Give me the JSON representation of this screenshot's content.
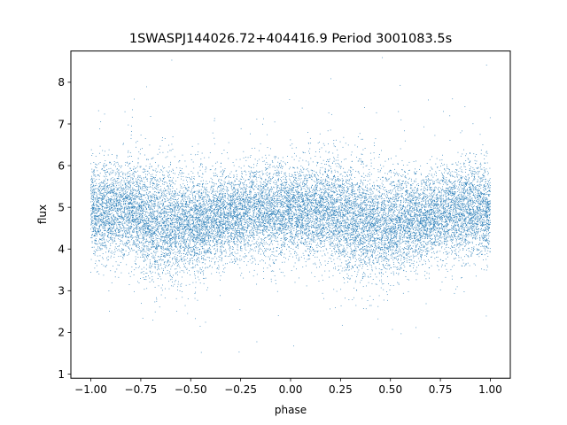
{
  "chart_data": {
    "type": "scatter",
    "title": "1SWASPJ144026.72+404416.9 Period 3001083.5s",
    "xlabel": "phase",
    "ylabel": "flux",
    "xlim": [
      -1.1,
      1.1
    ],
    "ylim": [
      0.9,
      8.75
    ],
    "xticks": [
      -1.0,
      -0.75,
      -0.5,
      -0.25,
      0.0,
      0.25,
      0.5,
      0.75,
      1.0
    ],
    "xtick_labels": [
      "−1.00",
      "−0.75",
      "−0.50",
      "−0.25",
      "0.00",
      "0.25",
      "0.50",
      "0.75",
      "1.00"
    ],
    "yticks": [
      1,
      2,
      3,
      4,
      5,
      6,
      7,
      8
    ],
    "ytick_labels": [
      "1",
      "2",
      "3",
      "4",
      "5",
      "6",
      "7",
      "8"
    ],
    "grid": false,
    "marker_color": "#1f77b4",
    "series": [
      {
        "profile_phase": [
          -1.0,
          -0.9,
          -0.8,
          -0.7,
          -0.6,
          -0.5,
          -0.4,
          -0.3,
          -0.2,
          -0.1,
          0.0,
          0.1,
          0.2,
          0.3,
          0.4,
          0.5,
          0.6,
          0.7,
          0.8,
          0.9,
          1.0
        ],
        "profile_median_flux": [
          4.9,
          4.95,
          4.95,
          4.65,
          4.6,
          4.55,
          4.7,
          4.8,
          4.9,
          4.95,
          4.9,
          4.95,
          4.95,
          4.65,
          4.6,
          4.55,
          4.7,
          4.8,
          4.9,
          4.95,
          4.9
        ],
        "profile_spread": [
          0.55,
          0.55,
          0.6,
          0.65,
          0.65,
          0.6,
          0.55,
          0.5,
          0.55,
          0.55,
          0.55,
          0.55,
          0.6,
          0.65,
          0.65,
          0.6,
          0.55,
          0.5,
          0.55,
          0.55,
          0.55
        ],
        "x_range": [
          -1.0,
          1.0
        ],
        "y_range": [
          1.3,
          8.6
        ],
        "approx_point_count": 18000
      }
    ]
  }
}
